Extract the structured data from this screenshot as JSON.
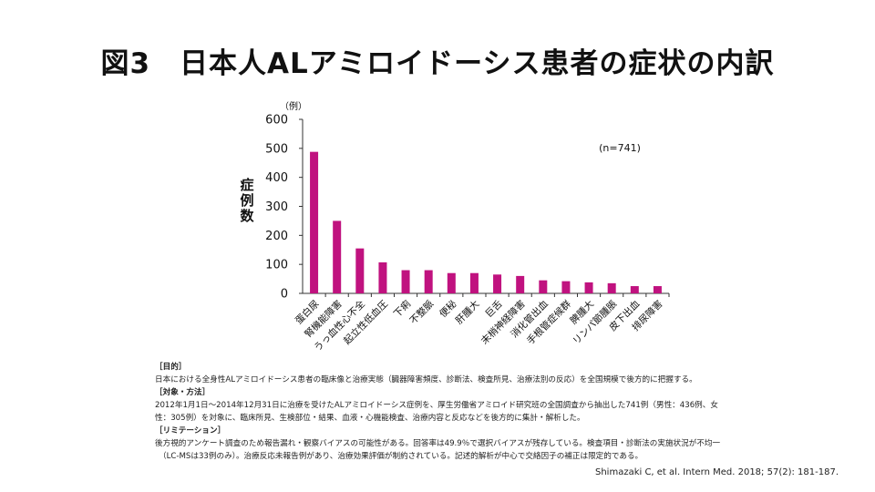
{
  "slide": {
    "title": "図3　日本人ALアミロイドーシス患者の症状の内訳"
  },
  "chart_data": {
    "type": "bar",
    "y_unit": "（例）",
    "ylabel": "症例数",
    "annotation": "(n=741)",
    "ylim": [
      0,
      600
    ],
    "yticks": [
      0,
      100,
      200,
      300,
      400,
      500,
      600
    ],
    "categories": [
      "蛋白尿",
      "腎機能障害",
      "うっ血性心不全",
      "起立性低血圧",
      "下痢",
      "不整脈",
      "便秘",
      "肝腫大",
      "巨舌",
      "末梢神経障害",
      "消化管出血",
      "手根管症候群",
      "脾腫大",
      "リンパ節腫脹",
      "皮下出血",
      "排尿障害"
    ],
    "values": [
      488,
      250,
      155,
      107,
      80,
      80,
      70,
      70,
      65,
      60,
      45,
      42,
      38,
      35,
      25,
      25
    ],
    "bar_color": "#c0127f",
    "grid": false
  },
  "notes": {
    "purpose_heading": "［目的］",
    "purpose_text": "日本における全身性ALアミロイドーシス患者の臨床像と治療実態（臓器障害頻度、診断法、検査所見、治療法別の反応）を全国規模で後方的に把握する。",
    "methods_heading": "［対象・方法］",
    "methods_text_1": "2012年1月1日～2014年12月31日に治療を受けたALアミロイドーシス症例を、厚生労働省アミロイド研究班の全国調査から抽出した741例（男性：436例、女",
    "methods_text_2": "性：305例）を対象に、臨床所見、生検部位・結果、血液・心機能検査、治療内容と反応などを後方的に集計・解析した。",
    "limit_heading": "［リミテーション］",
    "limit_text_1": "後方視的アンケート調査のため報告漏れ・観察バイアスの可能性がある。回答率は49.9％で選択バイアスが残存している。検査項目・診断法の実施状況が不均一",
    "limit_text_2": "（LC-MSは33例のみ）。治療反応未報告例があり、治療効果評価が制約されている。記述的解析が中心で交絡因子の補正は限定的である。"
  },
  "citation": "Shimazaki C, et al. Intern Med. 2018; 57(2): 181-187."
}
